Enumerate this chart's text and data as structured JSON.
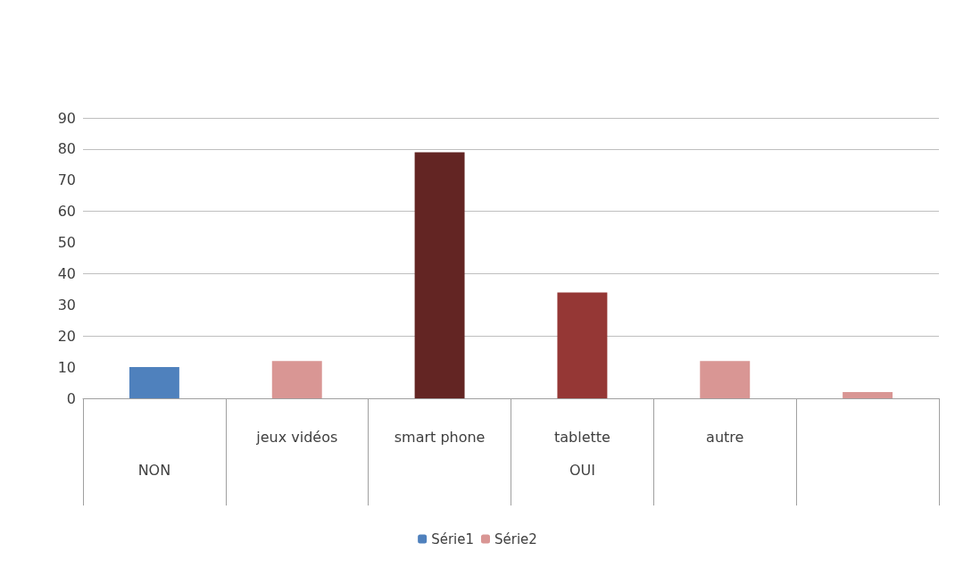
{
  "chart_data": {
    "type": "bar",
    "categories": [
      null,
      "jeux vidéos",
      "smart phone",
      "tablette",
      "autre",
      null
    ],
    "series": [
      {
        "name": "Série1",
        "color": "#4f81bd",
        "values": [
          10,
          null,
          null,
          null,
          null,
          null
        ]
      },
      {
        "name": "Série2",
        "color": "#d99694",
        "colors": [
          null,
          "#d99694",
          "#632523",
          "#953735",
          "#d99694",
          "#d99694"
        ],
        "values": [
          null,
          12,
          79,
          34,
          12,
          2
        ]
      }
    ],
    "ylim": [
      0,
      90
    ],
    "yticks": [
      0,
      10,
      20,
      30,
      40,
      50,
      60,
      70,
      80,
      90
    ],
    "grid": "y",
    "legend": "bottom",
    "annotations": [
      "NON",
      "OUI"
    ]
  }
}
